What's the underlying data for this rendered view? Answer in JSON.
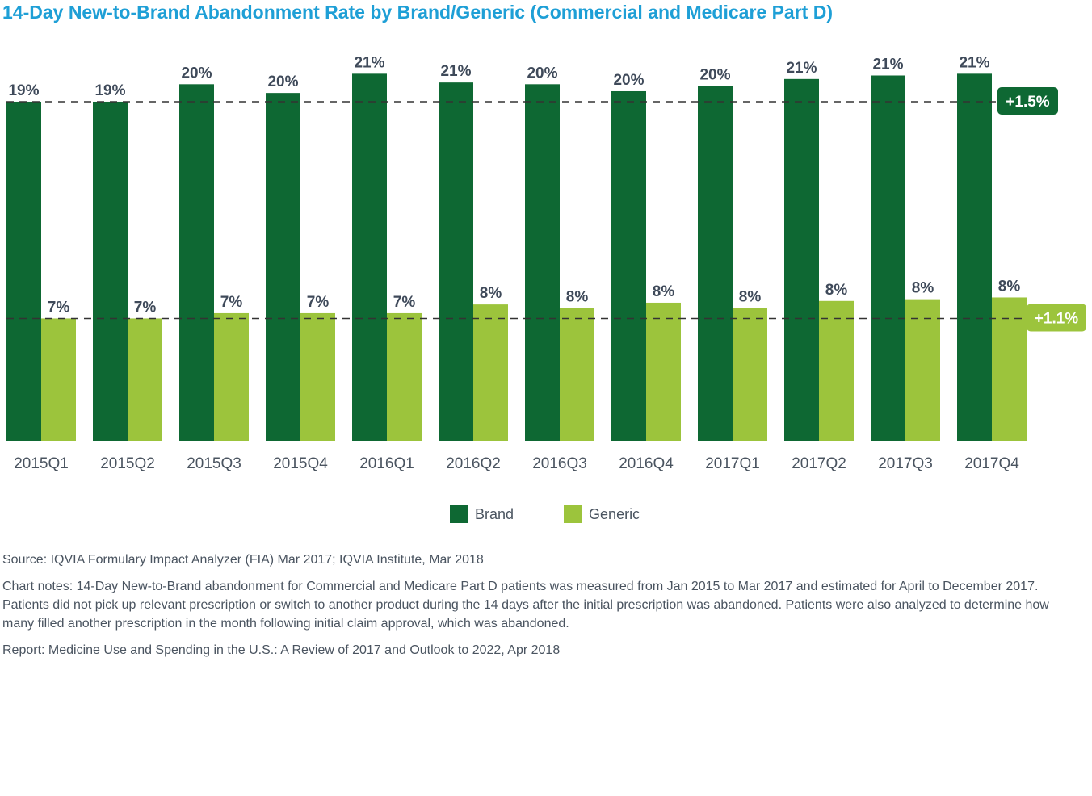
{
  "title": "14-Day New-to-Brand Abandonment Rate by Brand/Generic (Commercial and Medicare Part D)",
  "chart_data": {
    "type": "bar",
    "categories": [
      "2015Q1",
      "2015Q2",
      "2015Q3",
      "2015Q4",
      "2016Q1",
      "2016Q2",
      "2016Q3",
      "2016Q4",
      "2017Q1",
      "2017Q2",
      "2017Q3",
      "2017Q4"
    ],
    "series": [
      {
        "name": "Brand",
        "color": "#0e6833",
        "values": [
          19.4,
          19.4,
          20.4,
          19.9,
          21.0,
          20.5,
          20.4,
          20.0,
          20.3,
          20.7,
          20.9,
          21.0
        ],
        "labels": [
          "19%",
          "19%",
          "20%",
          "20%",
          "21%",
          "21%",
          "20%",
          "20%",
          "20%",
          "21%",
          "21%",
          "21%"
        ]
      },
      {
        "name": "Generic",
        "color": "#9cc43c",
        "values": [
          7.0,
          7.0,
          7.3,
          7.3,
          7.3,
          7.8,
          7.6,
          7.9,
          7.6,
          8.0,
          8.1,
          8.2
        ],
        "labels": [
          "7%",
          "7%",
          "7%",
          "7%",
          "7%",
          "8%",
          "8%",
          "8%",
          "8%",
          "8%",
          "8%",
          "8%"
        ]
      }
    ],
    "reference_lines": [
      {
        "series": "Brand",
        "value": 19.4,
        "label": "+1.5%",
        "color": "#0e6833",
        "text_color": "#ffffff"
      },
      {
        "series": "Generic",
        "value": 7.0,
        "label": "+1.1%",
        "color": "#9cc43c",
        "text_color": "#ffffff"
      }
    ],
    "ylim": [
      0,
      21.2
    ],
    "grid": false,
    "legend_position": "bottom-center"
  },
  "notes": {
    "source": "Source: IQVIA Formulary Impact Analyzer (FIA) Mar 2017; IQVIA Institute, Mar 2018",
    "chart_notes": "Chart notes: 14-Day New-to-Brand abandonment for Commercial and Medicare Part D patients was measured from Jan 2015 to Mar 2017 and estimated for April to December 2017. Patients did not pick up relevant prescription or switch to another product during the 14 days after the initial prescription was abandoned. Patients were also analyzed to determine how many filled another prescription in the month following initial claim approval, which was abandoned.",
    "report": "Report: Medicine Use and Spending in the U.S.: A Review of 2017 and Outlook to 2022, Apr 2018"
  }
}
